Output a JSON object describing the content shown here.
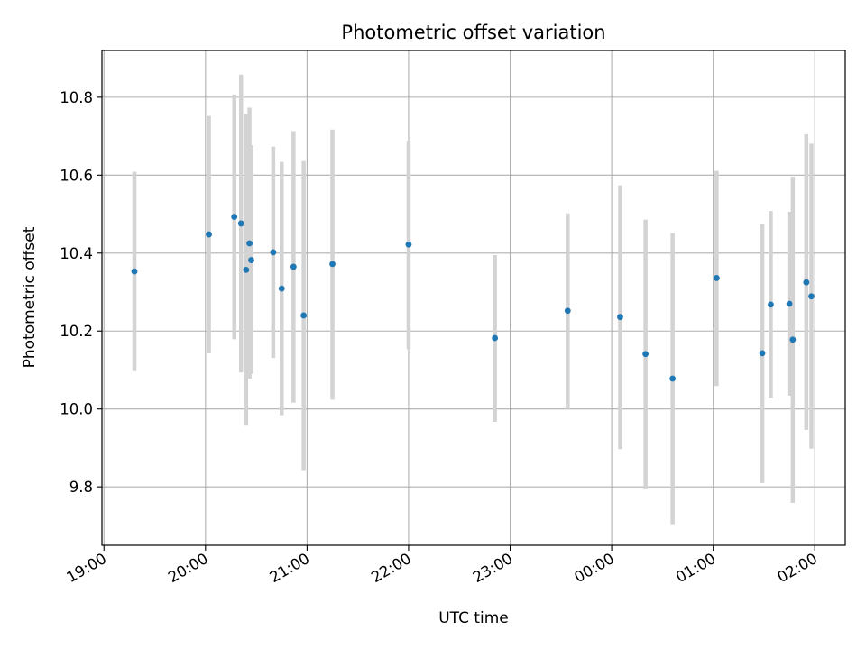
{
  "chart_data": {
    "type": "scatter",
    "title": "Photometric offset variation",
    "xlabel": "UTC time",
    "ylabel": "Photometric offset",
    "x_axis": {
      "unit": "hours since 19:00 UTC",
      "range": [
        -0.02,
        7.3
      ],
      "tick_values": [
        0,
        1,
        2,
        3,
        4,
        5,
        6,
        7
      ],
      "tick_labels": [
        "19:00",
        "20:00",
        "21:00",
        "22:00",
        "23:00",
        "00:00",
        "01:00",
        "02:00"
      ]
    },
    "y_axis": {
      "range": [
        9.65,
        10.92
      ],
      "tick_values": [
        9.8,
        10.0,
        10.2,
        10.4,
        10.6,
        10.8
      ],
      "tick_labels": [
        "9.8",
        "10.0",
        "10.2",
        "10.4",
        "10.6",
        "10.8"
      ]
    },
    "grid": true,
    "colors": {
      "point": "#1f77b4",
      "error_bar": "#d3d3d3"
    },
    "points": [
      {
        "time": "19:18",
        "y": 10.353,
        "ylow": 10.097,
        "yhigh": 10.609
      },
      {
        "time": "20:02",
        "y": 10.448,
        "ylow": 10.143,
        "yhigh": 10.752
      },
      {
        "time": "20:17",
        "y": 10.493,
        "ylow": 10.179,
        "yhigh": 10.807
      },
      {
        "time": "20:21",
        "y": 10.476,
        "ylow": 10.094,
        "yhigh": 10.858
      },
      {
        "time": "20:24",
        "y": 10.357,
        "ylow": 9.957,
        "yhigh": 10.757
      },
      {
        "time": "20:26",
        "y": 10.425,
        "ylow": 10.078,
        "yhigh": 10.773
      },
      {
        "time": "20:27",
        "y": 10.382,
        "ylow": 10.09,
        "yhigh": 10.677
      },
      {
        "time": "20:40",
        "y": 10.402,
        "ylow": 10.131,
        "yhigh": 10.673
      },
      {
        "time": "20:45",
        "y": 10.309,
        "ylow": 9.984,
        "yhigh": 10.634
      },
      {
        "time": "20:52",
        "y": 10.365,
        "ylow": 10.016,
        "yhigh": 10.713
      },
      {
        "time": "20:58",
        "y": 10.24,
        "ylow": 9.843,
        "yhigh": 10.636
      },
      {
        "time": "21:15",
        "y": 10.372,
        "ylow": 10.024,
        "yhigh": 10.717
      },
      {
        "time": "22:00",
        "y": 10.422,
        "ylow": 10.153,
        "yhigh": 10.688
      },
      {
        "time": "22:51",
        "y": 10.182,
        "ylow": 9.967,
        "yhigh": 10.395
      },
      {
        "time": "23:34",
        "y": 10.252,
        "ylow": 10.0,
        "yhigh": 10.502
      },
      {
        "time": "00:05",
        "y": 10.236,
        "ylow": 9.897,
        "yhigh": 10.574
      },
      {
        "time": "00:20",
        "y": 10.141,
        "ylow": 9.794,
        "yhigh": 10.486
      },
      {
        "time": "00:36",
        "y": 10.078,
        "ylow": 9.704,
        "yhigh": 10.451
      },
      {
        "time": "01:02",
        "y": 10.336,
        "ylow": 10.059,
        "yhigh": 10.611
      },
      {
        "time": "01:29",
        "y": 10.143,
        "ylow": 9.81,
        "yhigh": 10.475
      },
      {
        "time": "01:34",
        "y": 10.268,
        "ylow": 10.027,
        "yhigh": 10.508
      },
      {
        "time": "01:45",
        "y": 10.27,
        "ylow": 10.034,
        "yhigh": 10.506
      },
      {
        "time": "01:47",
        "y": 10.178,
        "ylow": 9.759,
        "yhigh": 10.596
      },
      {
        "time": "01:55",
        "y": 10.325,
        "ylow": 9.946,
        "yhigh": 10.705
      },
      {
        "time": "01:58",
        "y": 10.289,
        "ylow": 9.898,
        "yhigh": 10.681
      }
    ]
  }
}
